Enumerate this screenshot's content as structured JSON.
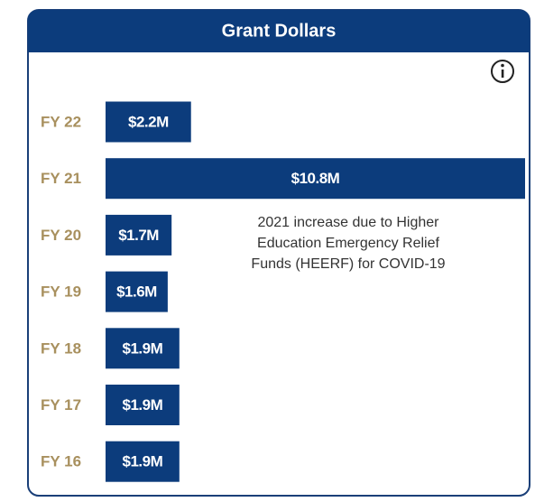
{
  "chart_data": {
    "type": "bar",
    "orientation": "horizontal",
    "title": "Grant Dollars",
    "categories": [
      "FY 22",
      "FY 21",
      "FY 20",
      "FY 19",
      "FY 18",
      "FY 17",
      "FY 16"
    ],
    "values": [
      2.2,
      10.8,
      1.7,
      1.6,
      1.9,
      1.9,
      1.9
    ],
    "value_labels": [
      "$2.2M",
      "$10.8M",
      "$1.7M",
      "$1.6M",
      "$1.9M",
      "$1.9M",
      "$1.9M"
    ],
    "color": "#0c3c7c",
    "annotation": [
      "2021 increase due to Higher",
      "Education Emergency Relief",
      "Funds (HEERF) for COVID-19"
    ]
  }
}
